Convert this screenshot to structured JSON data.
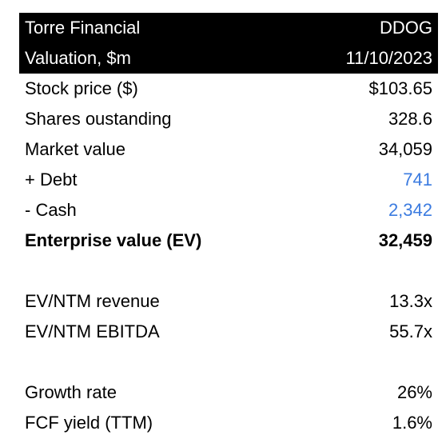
{
  "header": {
    "company": "Torre Financial",
    "ticker": "DDOG",
    "subtitle": "Valuation, $m",
    "date": "11/10/2023"
  },
  "rows": [
    {
      "label": "Stock price ($)",
      "value": "$103.65"
    },
    {
      "label": "Shares oustanding",
      "value": "328.6"
    },
    {
      "label": "Market value",
      "value": "34,059"
    },
    {
      "label": "+ Debt",
      "value": "741"
    },
    {
      "label": "- Cash",
      "value": "2,342"
    },
    {
      "label": "Enterprise value (EV)",
      "value": "32,459"
    },
    {
      "label": "EV/NTM revenue",
      "value": "13.3x"
    },
    {
      "label": "EV/NTM EBITDA",
      "value": "55.7x"
    },
    {
      "label": "Growth rate",
      "value": "26%"
    },
    {
      "label": "FCF yield (TTM)",
      "value": "1.6%"
    }
  ],
  "colors": {
    "header_bg": "#000000",
    "header_text": "#ffffff",
    "input_value": "#3b7be0"
  }
}
